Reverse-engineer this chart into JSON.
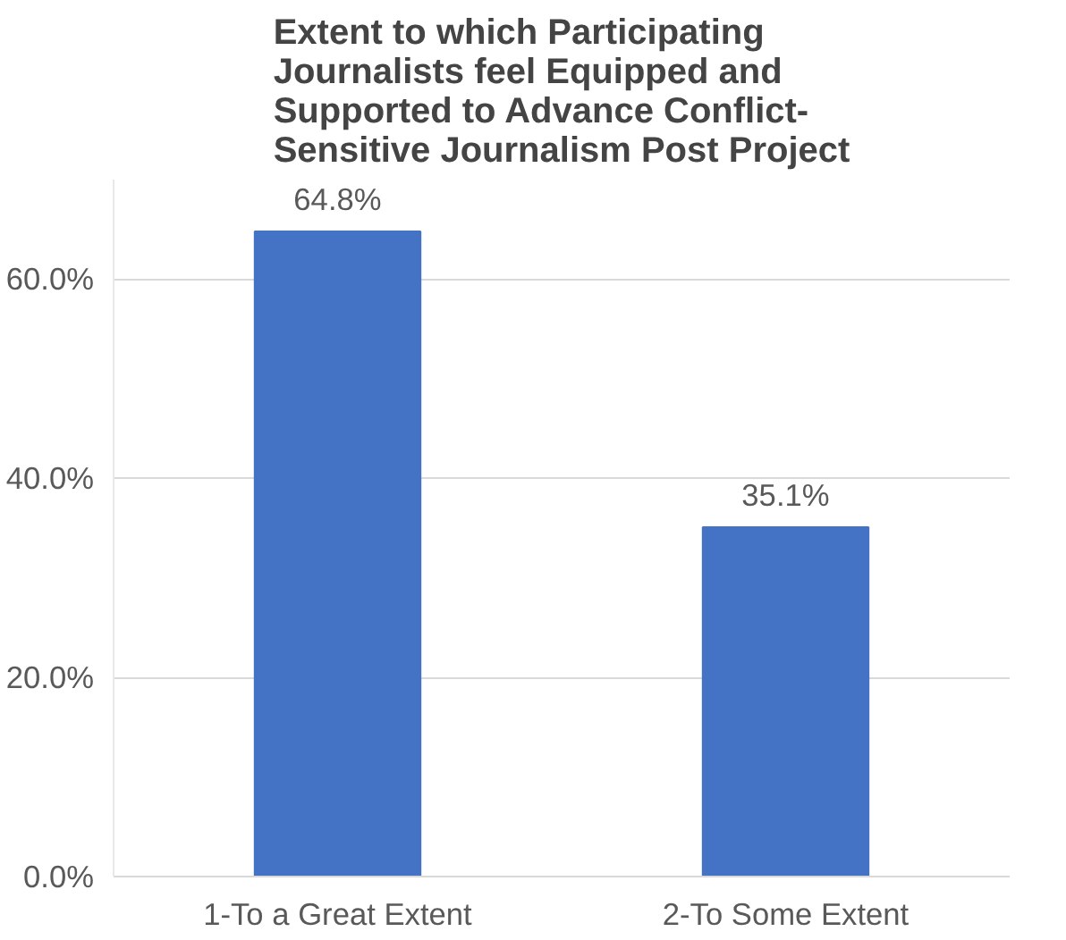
{
  "chart_data": {
    "type": "bar",
    "title": "Extent to which Participating Journalists feel Equipped and Supported to Advance Conflict-Sensitive Journalism Post Project",
    "categories": [
      "1-To a Great Extent",
      "2-To Some Extent"
    ],
    "values": [
      64.8,
      35.1
    ],
    "color": "#4472c4",
    "value_labels": [
      "64.8%",
      "35.1%"
    ],
    "ylim": [
      0,
      70
    ],
    "yticks": [
      {
        "value": 0,
        "label": "0.0%"
      },
      {
        "value": 20,
        "label": "20.0%"
      },
      {
        "value": 40,
        "label": "40.0%"
      },
      {
        "value": 60,
        "label": "60.0%"
      }
    ],
    "grid": "y"
  }
}
